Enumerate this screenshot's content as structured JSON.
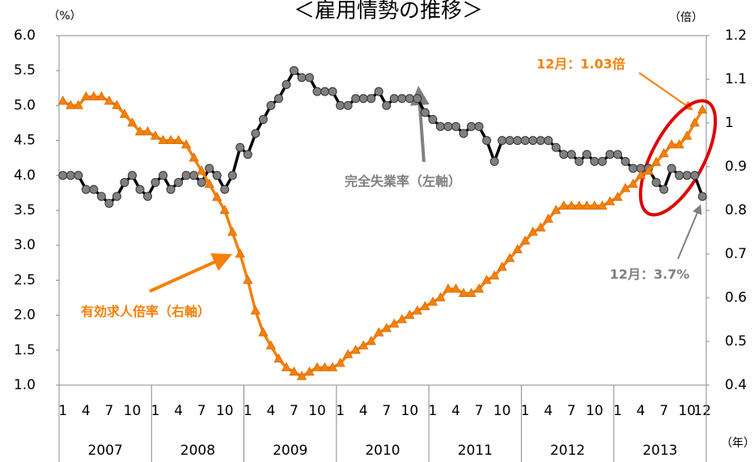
{
  "chart_data": {
    "type": "line",
    "title": "＜雇用情勢の推移＞",
    "y_label": "（%）",
    "y2_label": "（倍）",
    "x_label": "（年）",
    "categories": [
      "1",
      null,
      null,
      "4",
      null,
      null,
      "7",
      null,
      null,
      "10",
      null,
      null,
      "1",
      null,
      null,
      "4",
      null,
      null,
      "7",
      null,
      null,
      "10",
      null,
      null,
      "1",
      null,
      null,
      "4",
      null,
      null,
      "7",
      null,
      null,
      "10",
      null,
      null,
      "1",
      null,
      null,
      "4",
      null,
      null,
      "7",
      null,
      null,
      "10",
      null,
      null,
      "1",
      null,
      null,
      "4",
      null,
      null,
      "7",
      null,
      null,
      "10",
      null,
      null,
      "1",
      null,
      null,
      "4",
      null,
      null,
      "7",
      null,
      null,
      "10",
      null,
      null,
      "1",
      null,
      null,
      "4",
      null,
      null,
      "7",
      null,
      null,
      "10",
      null,
      "12"
    ],
    "year_groups": [
      "2007",
      "2008",
      "2009",
      "2010",
      "2011",
      "2012",
      "2013"
    ],
    "series": [
      {
        "name": "完全失業率（左軸）",
        "color": "#000000",
        "marker_color": "#808080",
        "axis": "y",
        "values": [
          4.0,
          4.0,
          4.0,
          3.8,
          3.8,
          3.7,
          3.6,
          3.7,
          3.9,
          4.0,
          3.8,
          3.7,
          3.9,
          4.0,
          3.8,
          3.9,
          4.0,
          4.0,
          3.9,
          4.1,
          4.0,
          3.8,
          4.0,
          4.4,
          4.3,
          4.6,
          4.8,
          5.0,
          5.1,
          5.3,
          5.5,
          5.4,
          5.4,
          5.2,
          5.2,
          5.2,
          5.0,
          5.0,
          5.1,
          5.1,
          5.1,
          5.2,
          5.0,
          5.1,
          5.1,
          5.1,
          5.1,
          4.9,
          4.8,
          4.7,
          4.7,
          4.7,
          4.6,
          4.7,
          4.7,
          4.5,
          4.2,
          4.5,
          4.5,
          4.5,
          4.5,
          4.5,
          4.5,
          4.5,
          4.4,
          4.3,
          4.3,
          4.2,
          4.3,
          4.2,
          4.2,
          4.3,
          4.3,
          4.2,
          4.1,
          4.1,
          4.1,
          3.9,
          3.8,
          4.1,
          4.0,
          4.0,
          4.0,
          3.7
        ]
      },
      {
        "name": "有効求人倍率（右軸）",
        "color": "#f5800a",
        "axis": "y2",
        "values": [
          1.05,
          1.04,
          1.04,
          1.06,
          1.06,
          1.06,
          1.05,
          1.04,
          1.02,
          1.0,
          0.98,
          0.98,
          0.97,
          0.96,
          0.96,
          0.96,
          0.95,
          0.92,
          0.89,
          0.86,
          0.83,
          0.8,
          0.75,
          0.7,
          0.64,
          0.57,
          0.52,
          0.49,
          0.46,
          0.44,
          0.43,
          0.42,
          0.43,
          0.44,
          0.44,
          0.44,
          0.45,
          0.47,
          0.48,
          0.49,
          0.5,
          0.52,
          0.53,
          0.54,
          0.55,
          0.56,
          0.57,
          0.58,
          0.59,
          0.6,
          0.62,
          0.62,
          0.61,
          0.61,
          0.62,
          0.64,
          0.65,
          0.67,
          0.69,
          0.71,
          0.73,
          0.75,
          0.76,
          0.78,
          0.8,
          0.81,
          0.81,
          0.81,
          0.81,
          0.81,
          0.81,
          0.82,
          0.83,
          0.85,
          0.86,
          0.88,
          0.89,
          0.91,
          0.93,
          0.95,
          0.95,
          0.97,
          1.0,
          1.03
        ]
      }
    ],
    "ylim": [
      1.0,
      6.0
    ],
    "yticks": [
      {
        "value": 1.0,
        "label": "1.0"
      },
      1.5,
      {
        "value": 2.0,
        "label": "2.0"
      },
      2.5,
      {
        "value": 3.0,
        "label": "3.0"
      },
      3.5,
      {
        "value": 4.0,
        "label": "4.0"
      },
      4.5,
      {
        "value": 5.0,
        "label": "5.0"
      },
      5.5,
      {
        "value": 6.0,
        "label": "6.0"
      }
    ],
    "y2lim": [
      0.4,
      1.2
    ],
    "y2ticks": [
      0.4,
      0.5,
      0.6,
      0.7,
      0.8,
      0.9,
      1,
      1.1,
      1.2
    ],
    "annotations": [
      "完全失業率（左軸）",
      "有効求人倍率（右軸）",
      "12月：1.03倍",
      "12月：3.7%"
    ]
  }
}
